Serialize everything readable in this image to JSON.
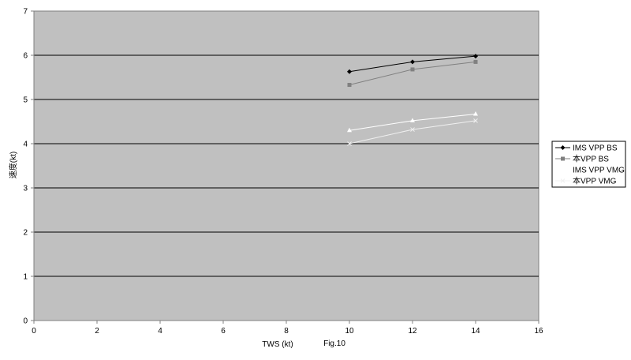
{
  "chart_data": {
    "type": "line",
    "title": "",
    "xlabel": "TWS (kt)",
    "ylabel": "速度(kt)",
    "annotation": "Fig.10",
    "xlim": [
      0,
      16
    ],
    "ylim": [
      0,
      7
    ],
    "xticks": [
      0,
      2,
      4,
      6,
      8,
      10,
      12,
      14,
      16
    ],
    "yticks": [
      0,
      1,
      2,
      3,
      4,
      5,
      6,
      7
    ],
    "grid": "horizontal",
    "plot_background": "#c0c0c0",
    "legend_position": "right",
    "x": [
      10,
      12,
      14
    ],
    "series": [
      {
        "name": "IMS VPP BS",
        "values": [
          5.63,
          5.85,
          5.98
        ],
        "color": "#000000",
        "marker": "diamond"
      },
      {
        "name": "本VPP BS",
        "values": [
          5.33,
          5.68,
          5.85
        ],
        "color": "#808080",
        "marker": "square"
      },
      {
        "name": "IMS VPP VMG",
        "values": [
          4.3,
          4.52,
          4.67
        ],
        "color": "#ffffff",
        "marker": "triangle"
      },
      {
        "name": "本VPP VMG",
        "values": [
          4.0,
          4.32,
          4.52
        ],
        "color": "#f0f0f0",
        "marker": "cross"
      }
    ]
  }
}
